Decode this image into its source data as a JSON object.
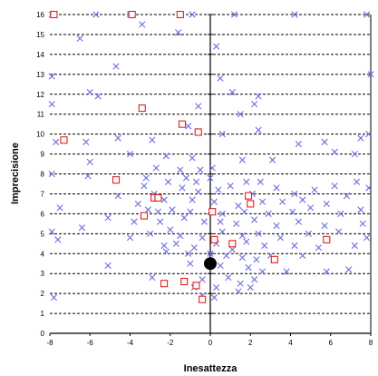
{
  "chart_data": {
    "type": "scatter",
    "title": "",
    "xlabel": "Inesattezza",
    "ylabel": "Imprecisione",
    "xlim": [
      -8,
      8
    ],
    "ylim": [
      0,
      16
    ],
    "x_ticks": [
      -8,
      -6,
      -4,
      -2,
      0,
      2,
      4,
      6,
      8
    ],
    "y_ticks": [
      0,
      1,
      2,
      3,
      4,
      5,
      6,
      7,
      8,
      9,
      10,
      11,
      12,
      13,
      14,
      15,
      16
    ],
    "grid": "horizontal dashed",
    "legend": "none",
    "series": [
      {
        "marker": "x",
        "color": "#6a6ee0",
        "points": [
          [
            -7.9,
            16.0
          ],
          [
            -5.7,
            16.0
          ],
          [
            -4.0,
            16.0
          ],
          [
            -3.4,
            15.5
          ],
          [
            -1.6,
            15.1
          ],
          [
            -0.9,
            16.0
          ],
          [
            1.2,
            16.0
          ],
          [
            4.2,
            16.0
          ],
          [
            7.8,
            16.0
          ],
          [
            -6.5,
            14.8
          ],
          [
            0.3,
            14.4
          ],
          [
            -4.7,
            13.4
          ],
          [
            -7.9,
            12.9
          ],
          [
            0.5,
            12.8
          ],
          [
            8.0,
            13.0
          ],
          [
            -6.0,
            12.1
          ],
          [
            -5.6,
            11.9
          ],
          [
            1.1,
            12.1
          ],
          [
            2.4,
            11.9
          ],
          [
            -7.9,
            11.5
          ],
          [
            2.2,
            11.5
          ],
          [
            -0.6,
            11.4
          ],
          [
            1.5,
            11.0
          ],
          [
            -1.1,
            10.4
          ],
          [
            -7.7,
            9.6
          ],
          [
            -6.2,
            9.6
          ],
          [
            -4.6,
            9.8
          ],
          [
            -2.9,
            9.7
          ],
          [
            0.6,
            10.0
          ],
          [
            2.4,
            10.2
          ],
          [
            4.4,
            9.5
          ],
          [
            5.7,
            9.6
          ],
          [
            7.5,
            9.8
          ],
          [
            7.9,
            10.0
          ],
          [
            -6.0,
            8.6
          ],
          [
            -4.0,
            9.0
          ],
          [
            -2.2,
            8.9
          ],
          [
            -0.9,
            8.8
          ],
          [
            1.6,
            8.7
          ],
          [
            3.1,
            8.7
          ],
          [
            6.2,
            9.1
          ],
          [
            7.2,
            9.0
          ],
          [
            -7.9,
            8.0
          ],
          [
            -2.7,
            8.3
          ],
          [
            -1.5,
            8.2
          ],
          [
            -0.5,
            8.2
          ],
          [
            0.1,
            8.3
          ],
          [
            -6.1,
            7.9
          ],
          [
            -3.2,
            7.8
          ],
          [
            -2.1,
            7.6
          ],
          [
            -1.2,
            7.8
          ],
          [
            0.0,
            7.8
          ],
          [
            -0.7,
            7.6
          ],
          [
            1.8,
            7.6
          ],
          [
            2.5,
            7.6
          ],
          [
            -3.3,
            7.4
          ],
          [
            -2.8,
            7.0
          ],
          [
            -1.4,
            7.3
          ],
          [
            -0.6,
            7.1
          ],
          [
            0.4,
            7.2
          ],
          [
            1.0,
            7.4
          ],
          [
            2.1,
            7.0
          ],
          [
            3.3,
            7.3
          ],
          [
            4.2,
            7.0
          ],
          [
            5.2,
            7.2
          ],
          [
            6.2,
            7.4
          ],
          [
            7.3,
            7.6
          ],
          [
            7.9,
            7.3
          ],
          [
            -4.6,
            6.9
          ],
          [
            -3.6,
            6.5
          ],
          [
            -2.3,
            6.7
          ],
          [
            -0.9,
            6.7
          ],
          [
            0.2,
            6.6
          ],
          [
            1.4,
            6.4
          ],
          [
            2.6,
            6.6
          ],
          [
            3.6,
            6.6
          ],
          [
            4.6,
            6.7
          ],
          [
            5.8,
            6.5
          ],
          [
            6.8,
            6.9
          ],
          [
            -7.5,
            6.3
          ],
          [
            -3.1,
            6.2
          ],
          [
            -2.6,
            6.1
          ],
          [
            -1.9,
            6.2
          ],
          [
            -1.0,
            6.1
          ],
          [
            0.6,
            6.0
          ],
          [
            1.7,
            6.1
          ],
          [
            2.9,
            6.0
          ],
          [
            4.1,
            6.1
          ],
          [
            5.0,
            6.3
          ],
          [
            6.5,
            6.0
          ],
          [
            7.5,
            6.2
          ],
          [
            -5.1,
            5.8
          ],
          [
            -3.8,
            5.6
          ],
          [
            -2.5,
            5.6
          ],
          [
            -1.3,
            5.8
          ],
          [
            -0.3,
            5.6
          ],
          [
            0.5,
            5.6
          ],
          [
            1.3,
            5.5
          ],
          [
            2.2,
            5.7
          ],
          [
            3.3,
            5.4
          ],
          [
            4.4,
            5.6
          ],
          [
            5.7,
            5.4
          ],
          [
            7.6,
            5.5
          ],
          [
            -7.9,
            5.1
          ],
          [
            -6.4,
            5.3
          ],
          [
            -3.0,
            5.0
          ],
          [
            -2.0,
            5.2
          ],
          [
            -1.5,
            4.9
          ],
          [
            -0.4,
            4.8
          ],
          [
            0.6,
            5.1
          ],
          [
            1.6,
            4.9
          ],
          [
            2.4,
            5.0
          ],
          [
            3.5,
            4.8
          ],
          [
            4.9,
            5.0
          ],
          [
            6.4,
            5.1
          ],
          [
            7.8,
            4.8
          ],
          [
            -7.6,
            4.7
          ],
          [
            -4.0,
            4.8
          ],
          [
            -2.3,
            4.4
          ],
          [
            -1.7,
            4.5
          ],
          [
            -0.8,
            4.3
          ],
          [
            0.3,
            4.5
          ],
          [
            1.1,
            4.2
          ],
          [
            1.8,
            4.6
          ],
          [
            2.7,
            4.4
          ],
          [
            4.2,
            4.4
          ],
          [
            5.4,
            4.3
          ],
          [
            7.2,
            4.4
          ],
          [
            -2.2,
            4.1
          ],
          [
            -1.1,
            4.0
          ],
          [
            0.0,
            4.0
          ],
          [
            0.8,
            3.9
          ],
          [
            1.6,
            3.8
          ],
          [
            2.3,
            3.7
          ],
          [
            3.0,
            3.9
          ],
          [
            4.6,
            3.9
          ],
          [
            -5.1,
            3.4
          ],
          [
            -1.0,
            3.5
          ],
          [
            0.5,
            3.4
          ],
          [
            1.9,
            3.3
          ],
          [
            2.6,
            3.1
          ],
          [
            3.8,
            3.1
          ],
          [
            5.8,
            3.1
          ],
          [
            6.9,
            3.2
          ],
          [
            -2.9,
            2.8
          ],
          [
            -0.4,
            2.7
          ],
          [
            0.9,
            2.8
          ],
          [
            2.2,
            2.7
          ],
          [
            -0.8,
            2.3
          ],
          [
            0.3,
            2.3
          ],
          [
            1.5,
            2.5
          ],
          [
            2.0,
            2.3
          ],
          [
            1.4,
            2.1
          ],
          [
            -0.4,
            1.9
          ],
          [
            0.2,
            1.8
          ],
          [
            -7.8,
            1.8
          ]
        ]
      },
      {
        "marker": "square",
        "color": "#e02020",
        "points": [
          [
            -7.8,
            16.0
          ],
          [
            -3.9,
            16.0
          ],
          [
            -1.5,
            16.0
          ],
          [
            -3.4,
            11.3
          ],
          [
            -1.4,
            10.5
          ],
          [
            -0.6,
            10.1
          ],
          [
            -7.3,
            9.7
          ],
          [
            -4.7,
            7.7
          ],
          [
            -2.8,
            6.8
          ],
          [
            -2.6,
            6.8
          ],
          [
            1.9,
            6.9
          ],
          [
            2.0,
            6.5
          ],
          [
            -3.3,
            5.9
          ],
          [
            0.1,
            6.1
          ],
          [
            0.2,
            4.7
          ],
          [
            1.1,
            4.5
          ],
          [
            3.2,
            3.7
          ],
          [
            5.8,
            4.7
          ],
          [
            -2.3,
            2.5
          ],
          [
            -1.3,
            2.6
          ],
          [
            -0.7,
            2.4
          ],
          [
            -0.4,
            1.7
          ]
        ]
      },
      {
        "marker": "dot",
        "color": "#000000",
        "points": [
          [
            0.0,
            3.5
          ]
        ]
      }
    ]
  }
}
